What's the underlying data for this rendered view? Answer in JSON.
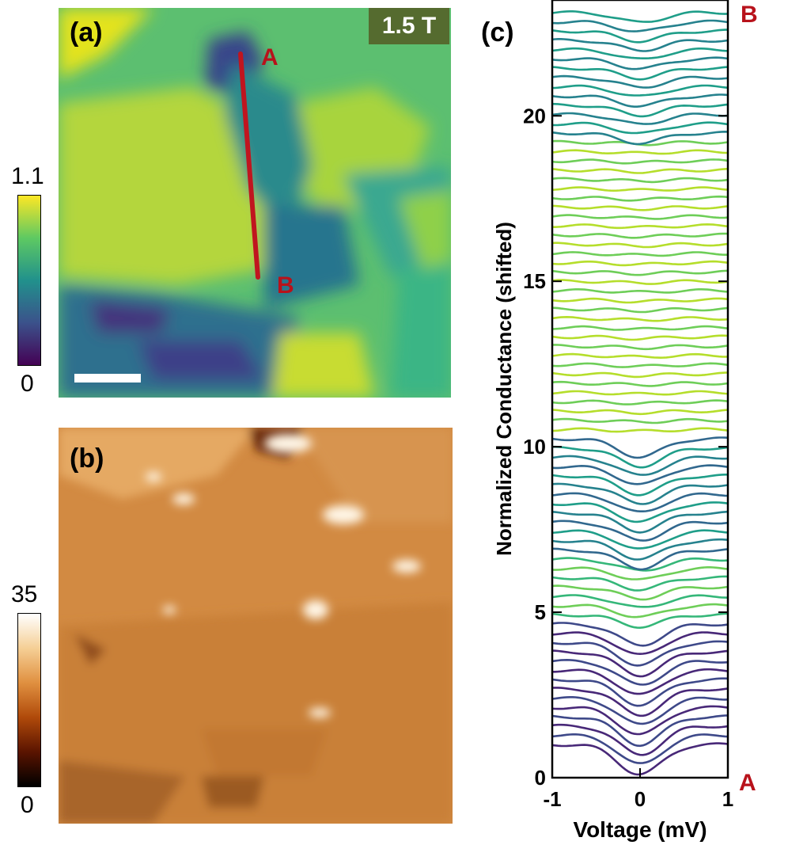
{
  "panels": {
    "a": "(a)",
    "b": "(b)",
    "c": "(c)"
  },
  "map_a": {
    "field_badge": "1.5 T",
    "line_start": "A",
    "line_end": "B",
    "colorbar": {
      "max": "1.1",
      "min": "0",
      "colormap": "viridis"
    }
  },
  "map_b": {
    "colorbar": {
      "max": "35",
      "min": "0",
      "colormap": "afmhot"
    }
  },
  "colors": {
    "line": "#c0151f",
    "marker_text": "#b8121b"
  },
  "chart_data": {
    "type": "line",
    "xlabel": "Voltage (mV)",
    "ylabel": "Normalized Conductance (shifted)",
    "xlim": [
      -1,
      1
    ],
    "ylim": [
      0,
      23.5
    ],
    "xticks": [
      "-1",
      "0",
      "1"
    ],
    "yticks": [
      "0",
      "5",
      "10",
      "15",
      "20"
    ],
    "end_labels": {
      "bottom": "A",
      "top": "B"
    },
    "n_curves": 80,
    "baseline_spacing": 0.28,
    "gap_depth_by_index": "deep dip near 0 mV for the lowest (purple) curves, flat for middle (yellow) curves, moderate dip for upper (teal) curves"
  }
}
